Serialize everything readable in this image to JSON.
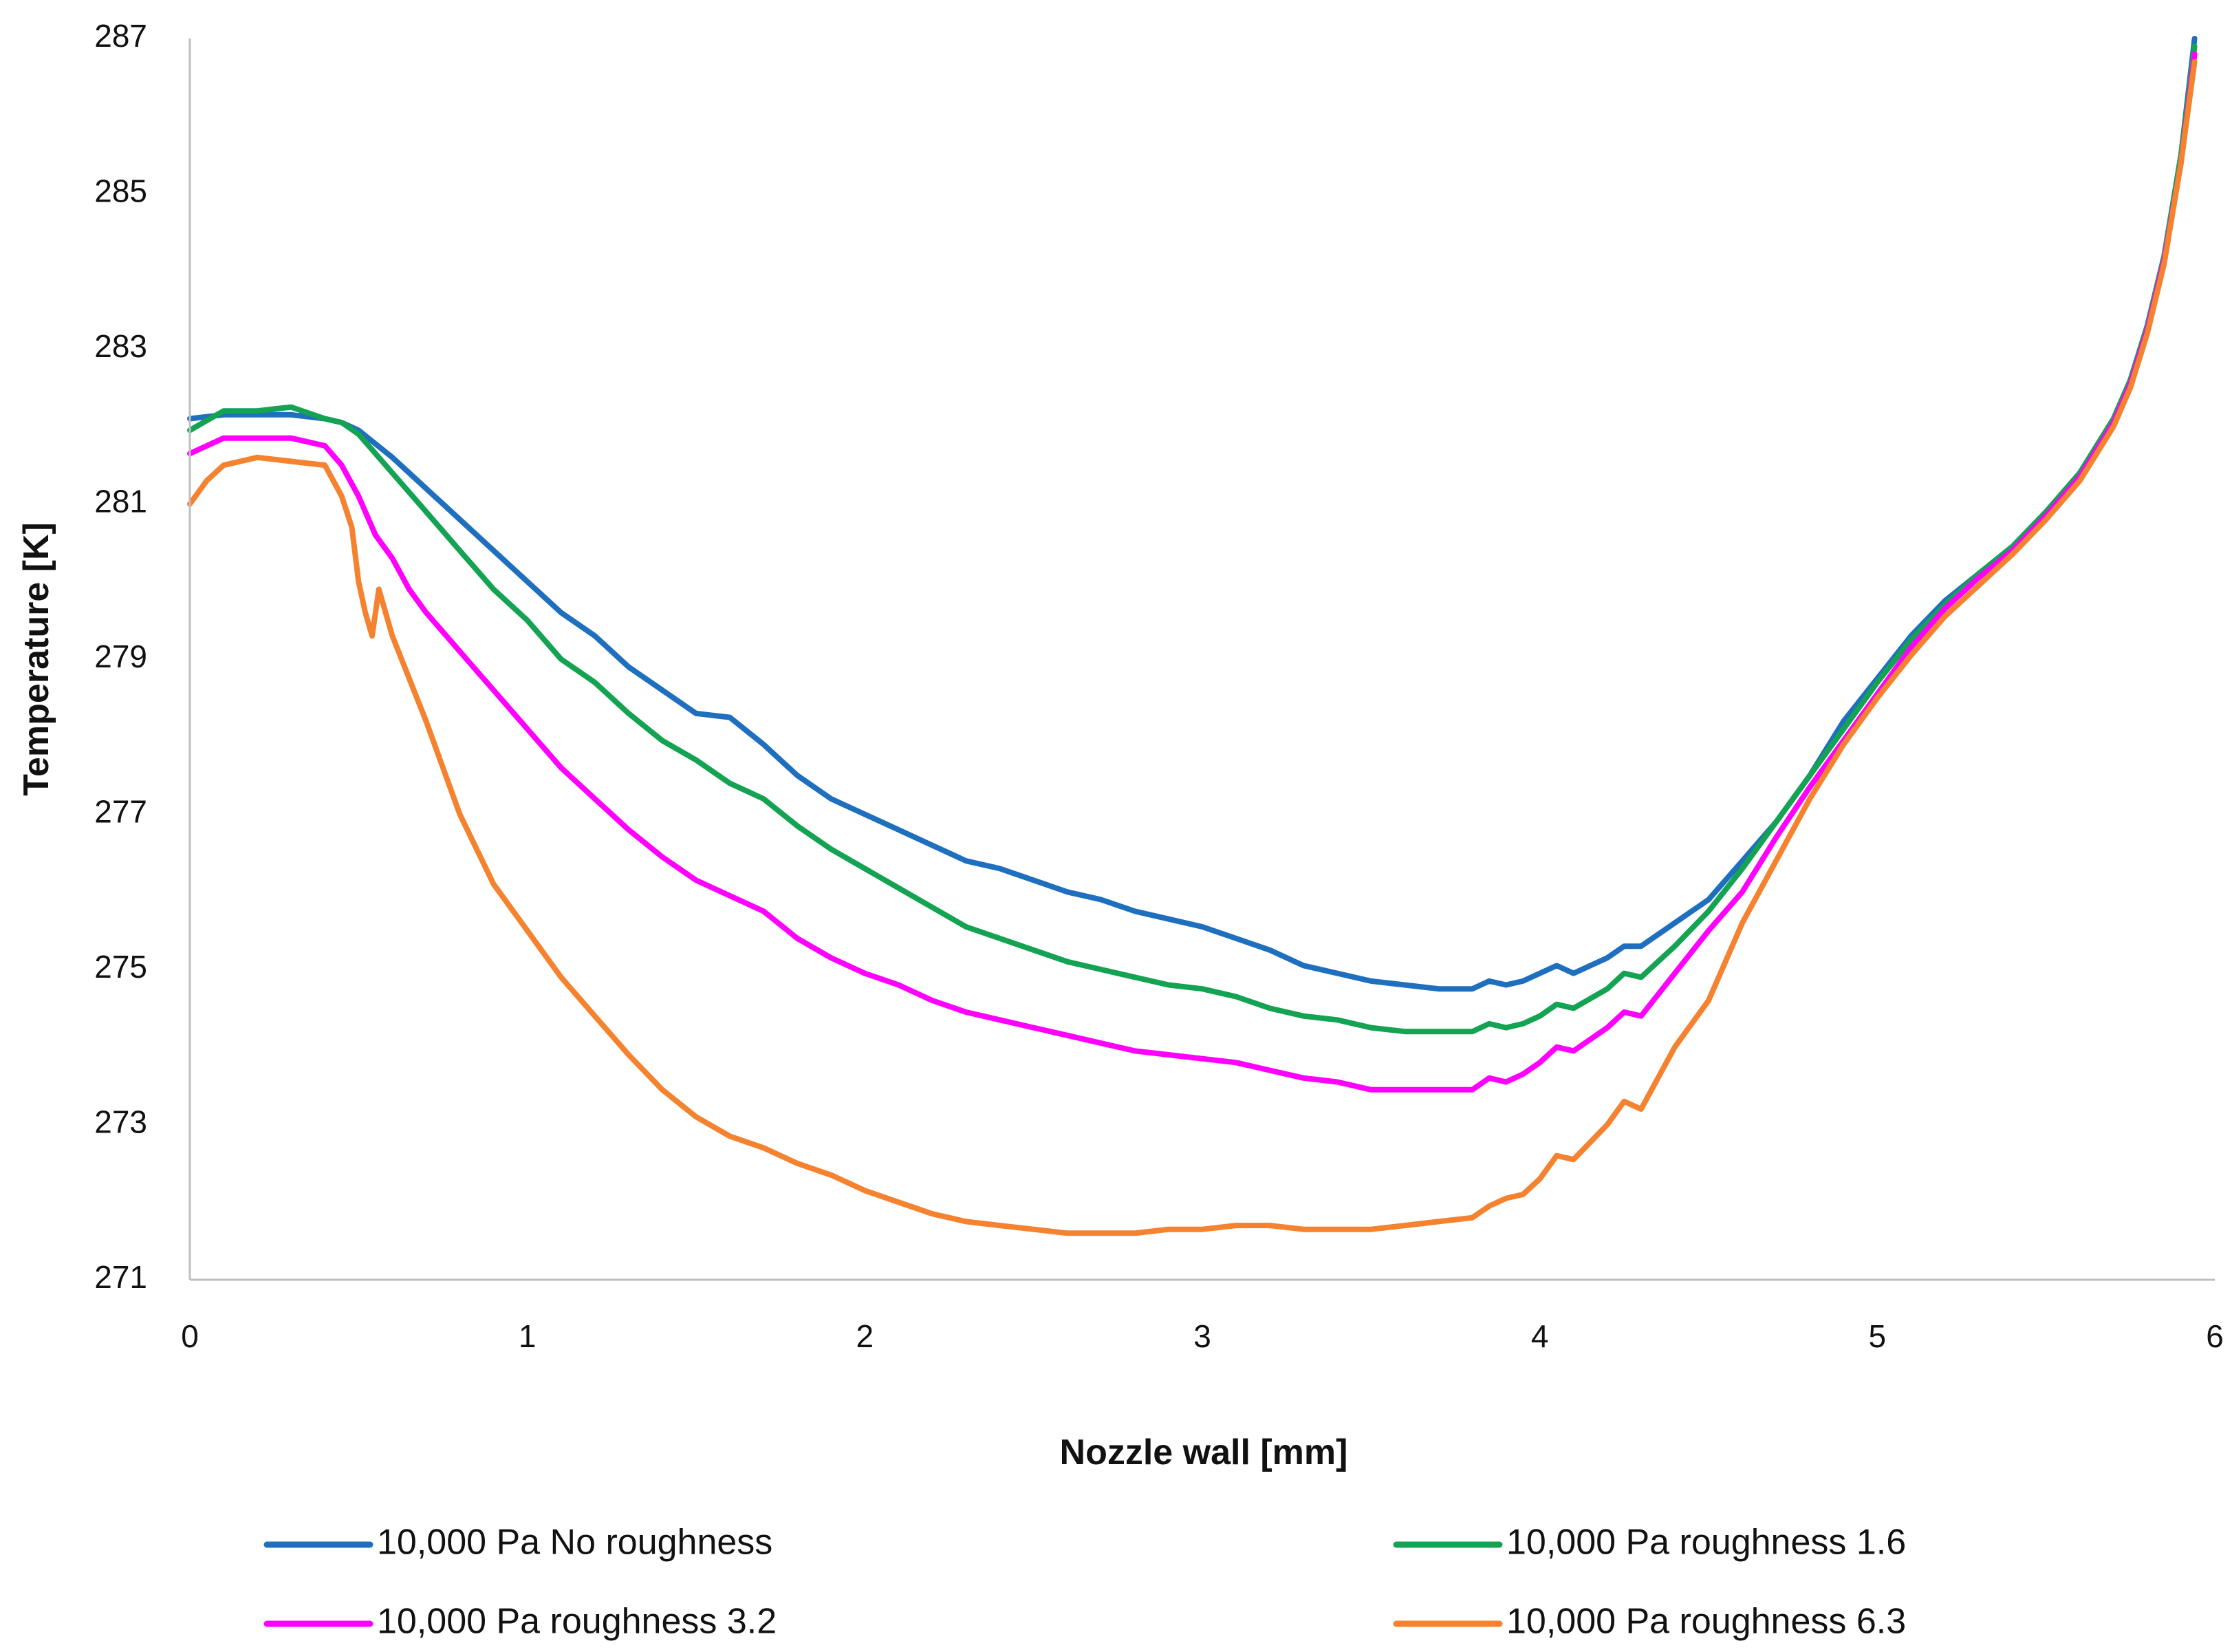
{
  "chart_data": {
    "type": "line",
    "title": "",
    "xlabel": "Nozzle wall [mm]",
    "ylabel": "Temperature [K]",
    "xlim": [
      0,
      6
    ],
    "ylim": [
      271,
      287
    ],
    "x_ticks": [
      "0",
      "1",
      "2",
      "3",
      "4",
      "5",
      "6"
    ],
    "y_ticks": [
      "271",
      "273",
      "275",
      "277",
      "279",
      "281",
      "283",
      "285",
      "287"
    ],
    "grid": false,
    "legend_position": "bottom",
    "series": [
      {
        "name": "10,000 Pa No roughness",
        "color": "#1f6fbf",
        "points": [
          [
            0,
            282.1
          ],
          [
            0.1,
            282.15
          ],
          [
            0.2,
            282.15
          ],
          [
            0.3,
            282.15
          ],
          [
            0.4,
            282.1
          ],
          [
            0.45,
            282.05
          ],
          [
            0.5,
            281.95
          ],
          [
            0.6,
            281.6
          ],
          [
            0.7,
            281.2
          ],
          [
            0.8,
            280.8
          ],
          [
            0.9,
            280.4
          ],
          [
            1.0,
            280.0
          ],
          [
            1.1,
            279.6
          ],
          [
            1.2,
            279.3
          ],
          [
            1.3,
            278.9
          ],
          [
            1.4,
            278.6
          ],
          [
            1.5,
            278.3
          ],
          [
            1.6,
            278.25
          ],
          [
            1.7,
            277.9
          ],
          [
            1.8,
            277.5
          ],
          [
            1.9,
            277.2
          ],
          [
            2.0,
            277.0
          ],
          [
            2.1,
            276.8
          ],
          [
            2.2,
            276.6
          ],
          [
            2.3,
            276.4
          ],
          [
            2.4,
            276.3
          ],
          [
            2.5,
            276.15
          ],
          [
            2.6,
            276.0
          ],
          [
            2.7,
            275.9
          ],
          [
            2.8,
            275.75
          ],
          [
            2.9,
            275.65
          ],
          [
            3.0,
            275.55
          ],
          [
            3.1,
            275.4
          ],
          [
            3.2,
            275.25
          ],
          [
            3.3,
            275.05
          ],
          [
            3.4,
            274.95
          ],
          [
            3.5,
            274.85
          ],
          [
            3.6,
            274.8
          ],
          [
            3.7,
            274.75
          ],
          [
            3.8,
            274.75
          ],
          [
            3.85,
            274.85
          ],
          [
            3.9,
            274.8
          ],
          [
            3.95,
            274.85
          ],
          [
            4.0,
            274.95
          ],
          [
            4.05,
            275.05
          ],
          [
            4.1,
            274.95
          ],
          [
            4.2,
            275.15
          ],
          [
            4.25,
            275.3
          ],
          [
            4.3,
            275.3
          ],
          [
            4.4,
            275.6
          ],
          [
            4.5,
            275.9
          ],
          [
            4.6,
            276.4
          ],
          [
            4.7,
            276.9
          ],
          [
            4.8,
            277.5
          ],
          [
            4.9,
            278.2
          ],
          [
            5.0,
            278.75
          ],
          [
            5.1,
            279.3
          ],
          [
            5.2,
            279.75
          ],
          [
            5.3,
            280.1
          ],
          [
            5.4,
            280.45
          ],
          [
            5.5,
            280.9
          ],
          [
            5.6,
            281.4
          ],
          [
            5.7,
            282.1
          ],
          [
            5.75,
            282.6
          ],
          [
            5.8,
            283.3
          ],
          [
            5.85,
            284.2
          ],
          [
            5.9,
            285.5
          ],
          [
            5.94,
            287.0
          ]
        ]
      },
      {
        "name": "10,000 Pa roughness 1.6",
        "color": "#13a352",
        "points": [
          [
            0,
            281.95
          ],
          [
            0.1,
            282.2
          ],
          [
            0.2,
            282.2
          ],
          [
            0.3,
            282.25
          ],
          [
            0.4,
            282.1
          ],
          [
            0.45,
            282.05
          ],
          [
            0.5,
            281.9
          ],
          [
            0.6,
            281.4
          ],
          [
            0.7,
            280.9
          ],
          [
            0.8,
            280.4
          ],
          [
            0.9,
            279.9
          ],
          [
            1.0,
            279.5
          ],
          [
            1.1,
            279.0
          ],
          [
            1.2,
            278.7
          ],
          [
            1.3,
            278.3
          ],
          [
            1.4,
            277.95
          ],
          [
            1.5,
            277.7
          ],
          [
            1.6,
            277.4
          ],
          [
            1.7,
            277.2
          ],
          [
            1.8,
            276.85
          ],
          [
            1.9,
            276.55
          ],
          [
            2.0,
            276.3
          ],
          [
            2.1,
            276.05
          ],
          [
            2.2,
            275.8
          ],
          [
            2.3,
            275.55
          ],
          [
            2.4,
            275.4
          ],
          [
            2.5,
            275.25
          ],
          [
            2.6,
            275.1
          ],
          [
            2.7,
            275.0
          ],
          [
            2.8,
            274.9
          ],
          [
            2.9,
            274.8
          ],
          [
            3.0,
            274.75
          ],
          [
            3.1,
            274.65
          ],
          [
            3.2,
            274.5
          ],
          [
            3.3,
            274.4
          ],
          [
            3.4,
            274.35
          ],
          [
            3.5,
            274.25
          ],
          [
            3.6,
            274.2
          ],
          [
            3.7,
            274.2
          ],
          [
            3.8,
            274.2
          ],
          [
            3.85,
            274.3
          ],
          [
            3.9,
            274.25
          ],
          [
            3.95,
            274.3
          ],
          [
            4.0,
            274.4
          ],
          [
            4.05,
            274.55
          ],
          [
            4.1,
            274.5
          ],
          [
            4.2,
            274.75
          ],
          [
            4.25,
            274.95
          ],
          [
            4.3,
            274.9
          ],
          [
            4.4,
            275.3
          ],
          [
            4.5,
            275.75
          ],
          [
            4.6,
            276.3
          ],
          [
            4.7,
            276.9
          ],
          [
            4.8,
            277.5
          ],
          [
            4.9,
            278.1
          ],
          [
            5.0,
            278.7
          ],
          [
            5.1,
            279.25
          ],
          [
            5.2,
            279.7
          ],
          [
            5.3,
            280.1
          ],
          [
            5.4,
            280.45
          ],
          [
            5.5,
            280.9
          ],
          [
            5.6,
            281.4
          ],
          [
            5.7,
            282.1
          ],
          [
            5.75,
            282.6
          ],
          [
            5.8,
            283.3
          ],
          [
            5.85,
            284.2
          ],
          [
            5.9,
            285.5
          ],
          [
            5.94,
            286.9
          ]
        ]
      },
      {
        "name": "10,000 Pa roughness 3.2",
        "color": "#ff00ff",
        "points": [
          [
            0,
            281.65
          ],
          [
            0.1,
            281.85
          ],
          [
            0.2,
            281.85
          ],
          [
            0.3,
            281.85
          ],
          [
            0.4,
            281.75
          ],
          [
            0.45,
            281.5
          ],
          [
            0.5,
            281.1
          ],
          [
            0.55,
            280.6
          ],
          [
            0.6,
            280.3
          ],
          [
            0.65,
            279.9
          ],
          [
            0.7,
            279.6
          ],
          [
            0.8,
            279.1
          ],
          [
            0.9,
            278.6
          ],
          [
            1.0,
            278.1
          ],
          [
            1.1,
            277.6
          ],
          [
            1.2,
            277.2
          ],
          [
            1.3,
            276.8
          ],
          [
            1.4,
            276.45
          ],
          [
            1.5,
            276.15
          ],
          [
            1.6,
            275.95
          ],
          [
            1.7,
            275.75
          ],
          [
            1.8,
            275.4
          ],
          [
            1.9,
            275.15
          ],
          [
            2.0,
            274.95
          ],
          [
            2.1,
            274.8
          ],
          [
            2.2,
            274.6
          ],
          [
            2.3,
            274.45
          ],
          [
            2.4,
            274.35
          ],
          [
            2.5,
            274.25
          ],
          [
            2.6,
            274.15
          ],
          [
            2.7,
            274.05
          ],
          [
            2.8,
            273.95
          ],
          [
            2.9,
            273.9
          ],
          [
            3.0,
            273.85
          ],
          [
            3.1,
            273.8
          ],
          [
            3.2,
            273.7
          ],
          [
            3.3,
            273.6
          ],
          [
            3.4,
            273.55
          ],
          [
            3.5,
            273.45
          ],
          [
            3.6,
            273.45
          ],
          [
            3.7,
            273.45
          ],
          [
            3.8,
            273.45
          ],
          [
            3.85,
            273.6
          ],
          [
            3.9,
            273.55
          ],
          [
            3.95,
            273.65
          ],
          [
            4.0,
            273.8
          ],
          [
            4.05,
            274.0
          ],
          [
            4.1,
            273.95
          ],
          [
            4.2,
            274.25
          ],
          [
            4.25,
            274.45
          ],
          [
            4.3,
            274.4
          ],
          [
            4.4,
            274.95
          ],
          [
            4.5,
            275.5
          ],
          [
            4.6,
            276.0
          ],
          [
            4.7,
            276.7
          ],
          [
            4.8,
            277.35
          ],
          [
            4.9,
            277.95
          ],
          [
            5.0,
            278.55
          ],
          [
            5.1,
            279.15
          ],
          [
            5.2,
            279.65
          ],
          [
            5.3,
            280.05
          ],
          [
            5.4,
            280.4
          ],
          [
            5.5,
            280.85
          ],
          [
            5.6,
            281.35
          ],
          [
            5.7,
            282.05
          ],
          [
            5.75,
            282.55
          ],
          [
            5.8,
            283.25
          ],
          [
            5.85,
            284.15
          ],
          [
            5.9,
            285.4
          ],
          [
            5.94,
            286.8
          ]
        ]
      },
      {
        "name": "10,000 Pa roughness 6.3",
        "color": "#f5822f",
        "points": [
          [
            0,
            281.0
          ],
          [
            0.05,
            281.3
          ],
          [
            0.1,
            281.5
          ],
          [
            0.2,
            281.6
          ],
          [
            0.3,
            281.55
          ],
          [
            0.4,
            281.5
          ],
          [
            0.45,
            281.1
          ],
          [
            0.48,
            280.7
          ],
          [
            0.5,
            280.0
          ],
          [
            0.52,
            279.6
          ],
          [
            0.54,
            279.3
          ],
          [
            0.56,
            279.9
          ],
          [
            0.6,
            279.3
          ],
          [
            0.7,
            278.2
          ],
          [
            0.8,
            277.0
          ],
          [
            0.9,
            276.1
          ],
          [
            1.0,
            275.5
          ],
          [
            1.1,
            274.9
          ],
          [
            1.2,
            274.4
          ],
          [
            1.3,
            273.9
          ],
          [
            1.4,
            273.45
          ],
          [
            1.5,
            273.1
          ],
          [
            1.6,
            272.85
          ],
          [
            1.7,
            272.7
          ],
          [
            1.8,
            272.5
          ],
          [
            1.9,
            272.35
          ],
          [
            2.0,
            272.15
          ],
          [
            2.1,
            272.0
          ],
          [
            2.2,
            271.85
          ],
          [
            2.3,
            271.75
          ],
          [
            2.4,
            271.7
          ],
          [
            2.5,
            271.65
          ],
          [
            2.6,
            271.6
          ],
          [
            2.7,
            271.6
          ],
          [
            2.8,
            271.6
          ],
          [
            2.9,
            271.65
          ],
          [
            3.0,
            271.65
          ],
          [
            3.1,
            271.7
          ],
          [
            3.2,
            271.7
          ],
          [
            3.3,
            271.65
          ],
          [
            3.4,
            271.65
          ],
          [
            3.5,
            271.65
          ],
          [
            3.6,
            271.7
          ],
          [
            3.7,
            271.75
          ],
          [
            3.8,
            271.8
          ],
          [
            3.85,
            271.95
          ],
          [
            3.9,
            272.05
          ],
          [
            3.95,
            272.1
          ],
          [
            4.0,
            272.3
          ],
          [
            4.05,
            272.6
          ],
          [
            4.1,
            272.55
          ],
          [
            4.2,
            273.0
          ],
          [
            4.25,
            273.3
          ],
          [
            4.3,
            273.2
          ],
          [
            4.4,
            274.0
          ],
          [
            4.5,
            274.6
          ],
          [
            4.6,
            275.6
          ],
          [
            4.7,
            276.4
          ],
          [
            4.8,
            277.2
          ],
          [
            4.9,
            277.9
          ],
          [
            5.0,
            278.5
          ],
          [
            5.1,
            279.05
          ],
          [
            5.2,
            279.55
          ],
          [
            5.3,
            279.95
          ],
          [
            5.4,
            280.35
          ],
          [
            5.5,
            280.8
          ],
          [
            5.6,
            281.3
          ],
          [
            5.7,
            282.0
          ],
          [
            5.75,
            282.5
          ],
          [
            5.8,
            283.2
          ],
          [
            5.85,
            284.1
          ],
          [
            5.9,
            285.4
          ],
          [
            5.94,
            286.7
          ]
        ]
      }
    ]
  }
}
